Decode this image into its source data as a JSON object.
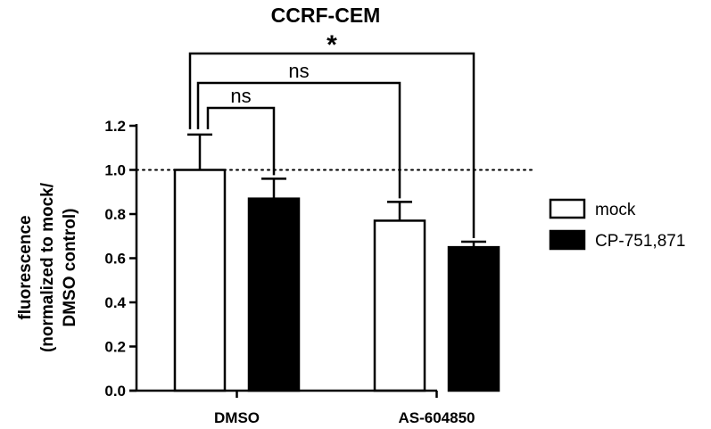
{
  "chart_data": {
    "type": "bar",
    "title": "CCRF-CEM",
    "xlabel": "",
    "ylabel_lines": [
      "fluorescence",
      "(normalized to mock/",
      "DMSO control)"
    ],
    "categories": [
      "DMSO",
      "AS-604850"
    ],
    "series": [
      {
        "name": "mock",
        "values": [
          1.0,
          0.77
        ],
        "errors": [
          0.16,
          0.085
        ],
        "color": "#ffffff",
        "edge": "#000000"
      },
      {
        "name": "CP-751,871",
        "values": [
          0.87,
          0.65
        ],
        "errors": [
          0.09,
          0.025
        ],
        "color": "#000000",
        "edge": "#000000"
      }
    ],
    "ylim": [
      0.0,
      1.2
    ],
    "yticks": [
      "0.0",
      "0.2",
      "0.4",
      "0.6",
      "0.8",
      "1.0",
      "1.2"
    ],
    "reference_line": {
      "value": 1.0,
      "style": "dotted"
    },
    "grid": false,
    "legend_position": "right",
    "annotations": [
      {
        "label": "ns",
        "from": {
          "category": 0,
          "series": 0
        },
        "to": {
          "category": 0,
          "series": 1
        }
      },
      {
        "label": "ns",
        "from": {
          "category": 0,
          "series": 0
        },
        "to": {
          "category": 1,
          "series": 0
        }
      },
      {
        "label": "*",
        "from": {
          "category": 0,
          "series": 0
        },
        "to": {
          "category": 1,
          "series": 1
        }
      }
    ]
  }
}
